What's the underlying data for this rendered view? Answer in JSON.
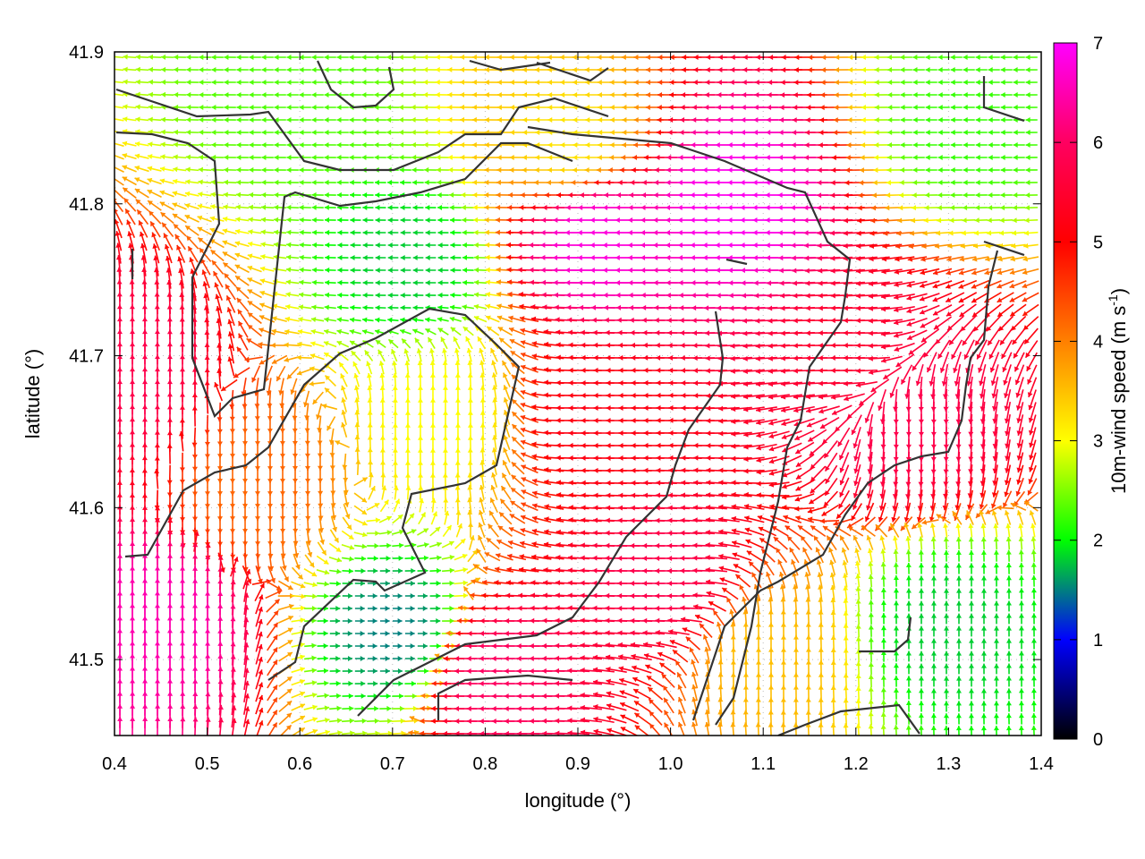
{
  "chart_data": {
    "type": "vector-field",
    "xlabel": "longitude (°)",
    "ylabel": "latitude (°)",
    "xlim": [
      0.4,
      1.4
    ],
    "ylim": [
      41.45,
      41.9
    ],
    "xticks": [
      "0.4",
      "0.5",
      "0.6",
      "0.7",
      "0.8",
      "0.9",
      "1.0",
      "1.1",
      "1.2",
      "1.3",
      "1.4"
    ],
    "yticks": [
      "41.5",
      "41.6",
      "41.7",
      "41.8",
      "41.9"
    ],
    "grid": true,
    "colorbar": {
      "label": "10m-wind speed (m s",
      "label_exp": "-1",
      "label_close": ")",
      "range": [
        0,
        7
      ],
      "ticks": [
        "0",
        "1",
        "2",
        "3",
        "4",
        "5",
        "6",
        "7"
      ],
      "colors": [
        "#000000",
        "#0000ff",
        "#00ff00",
        "#ffff00",
        "#ff8000",
        "#ff0000",
        "#ff00ff"
      ]
    },
    "wind_regions": [
      {
        "lon": 0.42,
        "lat": 41.68,
        "speed": 5.8,
        "dir": "N"
      },
      {
        "lon": 0.45,
        "lat": 41.52,
        "speed": 6.5,
        "dir": "N"
      },
      {
        "lon": 0.55,
        "lat": 41.62,
        "speed": 4.2,
        "dir": "S"
      },
      {
        "lon": 0.6,
        "lat": 41.87,
        "speed": 2.3,
        "dir": "W"
      },
      {
        "lon": 0.72,
        "lat": 41.76,
        "speed": 1.8,
        "dir": "W"
      },
      {
        "lon": 0.75,
        "lat": 41.66,
        "speed": 3.0,
        "dir": "N"
      },
      {
        "lon": 0.9,
        "lat": 41.84,
        "speed": 3.2,
        "dir": "W"
      },
      {
        "lon": 0.93,
        "lat": 41.66,
        "speed": 5.2,
        "dir": "W"
      },
      {
        "lon": 0.93,
        "lat": 41.78,
        "speed": 6.8,
        "dir": "W"
      },
      {
        "lon": 1.08,
        "lat": 41.8,
        "speed": 6.9,
        "dir": "W"
      },
      {
        "lon": 1.0,
        "lat": 41.55,
        "speed": 5.8,
        "dir": "W"
      },
      {
        "lon": 1.2,
        "lat": 41.7,
        "speed": 5.5,
        "dir": "W"
      },
      {
        "lon": 1.32,
        "lat": 41.85,
        "speed": 2.2,
        "dir": "W"
      },
      {
        "lon": 1.3,
        "lat": 41.52,
        "speed": 1.8,
        "dir": "N"
      },
      {
        "lon": 0.7,
        "lat": 41.52,
        "speed": 1.5,
        "dir": "E"
      },
      {
        "lon": 1.1,
        "lat": 41.5,
        "speed": 3.5,
        "dir": "N"
      },
      {
        "lon": 0.82,
        "lat": 41.49,
        "speed": 6.0,
        "dir": "W"
      },
      {
        "lon": 1.26,
        "lat": 41.66,
        "speed": 5.8,
        "dir": "S"
      }
    ]
  }
}
